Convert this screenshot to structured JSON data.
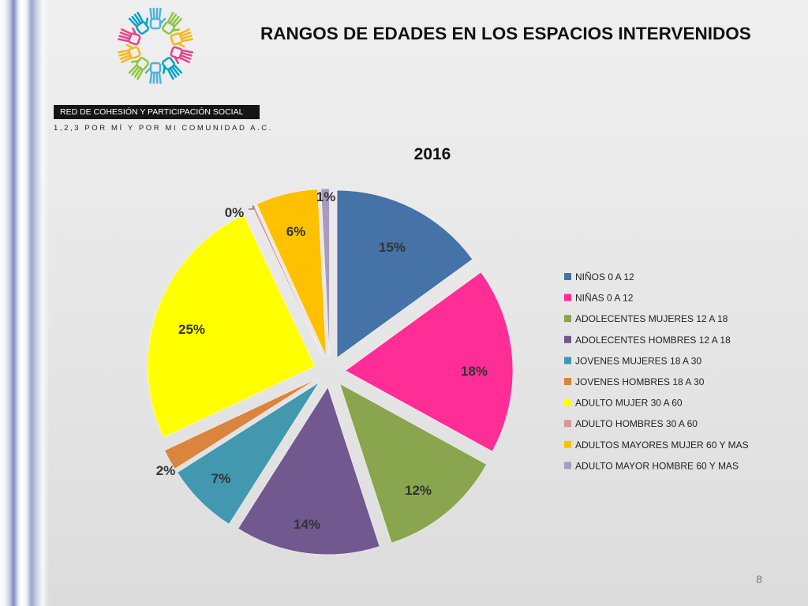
{
  "slide": {
    "title": "RANGOS DE EDADES EN LOS ESPACIOS INTERVENIDOS",
    "page_number": "8"
  },
  "organization": {
    "name": "RED DE COHESIÓN Y PARTICIPACIÓN SOCIAL",
    "tagline": "1,2,3 POR MÍ Y POR MI COMUNIDAD A.C."
  },
  "logo_colors": [
    "#4fb3d9",
    "#8dc63f",
    "#f7b718",
    "#e8418a",
    "#00a3c8"
  ],
  "chart_data": {
    "type": "pie",
    "title": "2016",
    "exploded": true,
    "legend_position": "right",
    "unit": "%",
    "categories": [
      "NIÑOS 0 A 12",
      "NIÑAS 0 A 12",
      "ADOLECENTES MUJERES 12 A 18",
      "ADOLECENTES HOMBRES 12 A 18",
      "JOVENES MUJERES 18 A 30",
      "JOVENES HOMBRES 18 A 30",
      "ADULTO MUJER 30 A 60",
      "ADULTO HOMBRES 30 A 60",
      "ADULTOS MAYORES MUJER 60 Y MAS",
      "ADULTO MAYOR HOMBRE 60 Y MAS"
    ],
    "values": [
      15,
      18,
      12,
      14,
      7,
      2,
      25,
      0.2,
      6,
      0.8
    ],
    "labels": [
      "15%",
      "18%",
      "12%",
      "14%",
      "7%",
      "2%",
      "25%",
      "0%",
      "6%",
      "1%"
    ],
    "colors": [
      "#4572a7",
      "#ff2d95",
      "#89a54e",
      "#71588f",
      "#4198af",
      "#db843d",
      "#ffff00",
      "#d99694",
      "#ffc000",
      "#a99bbd"
    ]
  }
}
